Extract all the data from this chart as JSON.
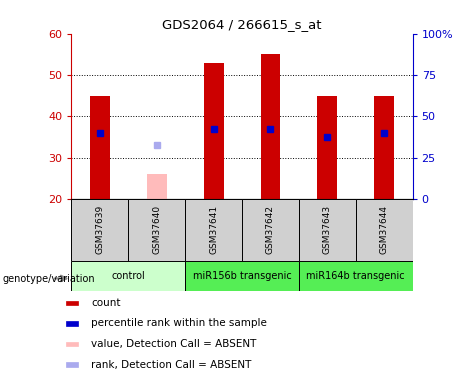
{
  "title": "GDS2064 / 266615_s_at",
  "samples": [
    "GSM37639",
    "GSM37640",
    "GSM37641",
    "GSM37642",
    "GSM37643",
    "GSM37644"
  ],
  "bar_values": [
    45,
    26,
    53,
    55,
    45,
    45
  ],
  "bar_colors": [
    "#cc0000",
    "#ffbbbb",
    "#cc0000",
    "#cc0000",
    "#cc0000",
    "#cc0000"
  ],
  "rank_values": [
    36,
    33,
    37,
    37,
    35,
    36
  ],
  "rank_colors": [
    "#0000cc",
    "#aaaaee",
    "#0000cc",
    "#0000cc",
    "#0000cc",
    "#0000cc"
  ],
  "ylim_left": [
    20,
    60
  ],
  "ylim_right": [
    0,
    100
  ],
  "yticks_left": [
    20,
    30,
    40,
    50,
    60
  ],
  "yticks_right": [
    0,
    25,
    50,
    75,
    100
  ],
  "ytick_labels_right": [
    "0",
    "25",
    "50",
    "75",
    "100%"
  ],
  "bar_width": 0.35,
  "left_axis_color": "#cc0000",
  "right_axis_color": "#0000cc",
  "grid_lines": [
    30,
    40,
    50
  ],
  "legend_items": [
    {
      "label": "count",
      "color": "#cc0000"
    },
    {
      "label": "percentile rank within the sample",
      "color": "#0000cc"
    },
    {
      "label": "value, Detection Call = ABSENT",
      "color": "#ffbbbb"
    },
    {
      "label": "rank, Detection Call = ABSENT",
      "color": "#aaaaee"
    }
  ],
  "genotype_label": "genotype/variation",
  "sample_box_color": "#d0d0d0",
  "control_color": "#ccffcc",
  "transgenic_color": "#55ee55",
  "group_info": [
    {
      "label": "control",
      "start": 0,
      "end": 1,
      "color": "#ccffcc"
    },
    {
      "label": "miR156b transgenic",
      "start": 2,
      "end": 3,
      "color": "#55ee55"
    },
    {
      "label": "miR164b transgenic",
      "start": 4,
      "end": 5,
      "color": "#55ee55"
    }
  ]
}
